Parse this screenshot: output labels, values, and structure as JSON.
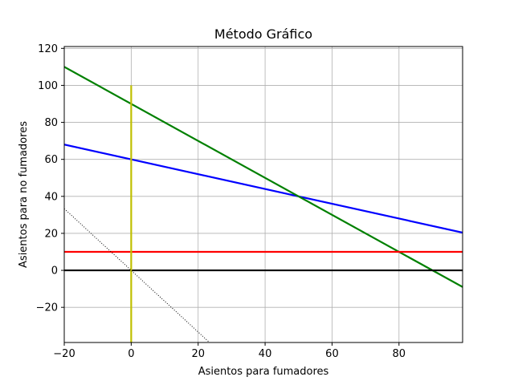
{
  "chart_data": {
    "type": "line",
    "title": "Método Gráfico",
    "xlabel": "Asientos para fumadores",
    "ylabel": "Asientos para no fumadores",
    "xlim": [
      -20,
      99
    ],
    "ylim": [
      -39,
      121
    ],
    "xticks": [
      -20,
      0,
      20,
      40,
      60,
      80
    ],
    "yticks": [
      -20,
      0,
      20,
      40,
      60,
      80,
      100,
      120
    ],
    "grid": true,
    "legend": "none",
    "series": [
      {
        "color": "#0000ff",
        "style": "solid",
        "x": [
          -20,
          99
        ],
        "y": [
          68,
          20.4
        ]
      },
      {
        "color": "#008000",
        "style": "solid",
        "x": [
          -20,
          99
        ],
        "y": [
          110,
          -9
        ]
      },
      {
        "color": "#ff0000",
        "style": "solid",
        "x": [
          -20,
          99
        ],
        "y": [
          10,
          10
        ]
      },
      {
        "color": "#000000",
        "style": "solid",
        "x": [
          -20,
          99
        ],
        "y": [
          0,
          0
        ]
      },
      {
        "color": "#bfbf00",
        "style": "solid",
        "x": [
          0,
          0
        ],
        "y": [
          -39,
          100
        ]
      },
      {
        "color": "#000000",
        "style": "dotted",
        "x": [
          -20,
          23.4
        ],
        "y": [
          33.3,
          -39
        ]
      }
    ]
  }
}
